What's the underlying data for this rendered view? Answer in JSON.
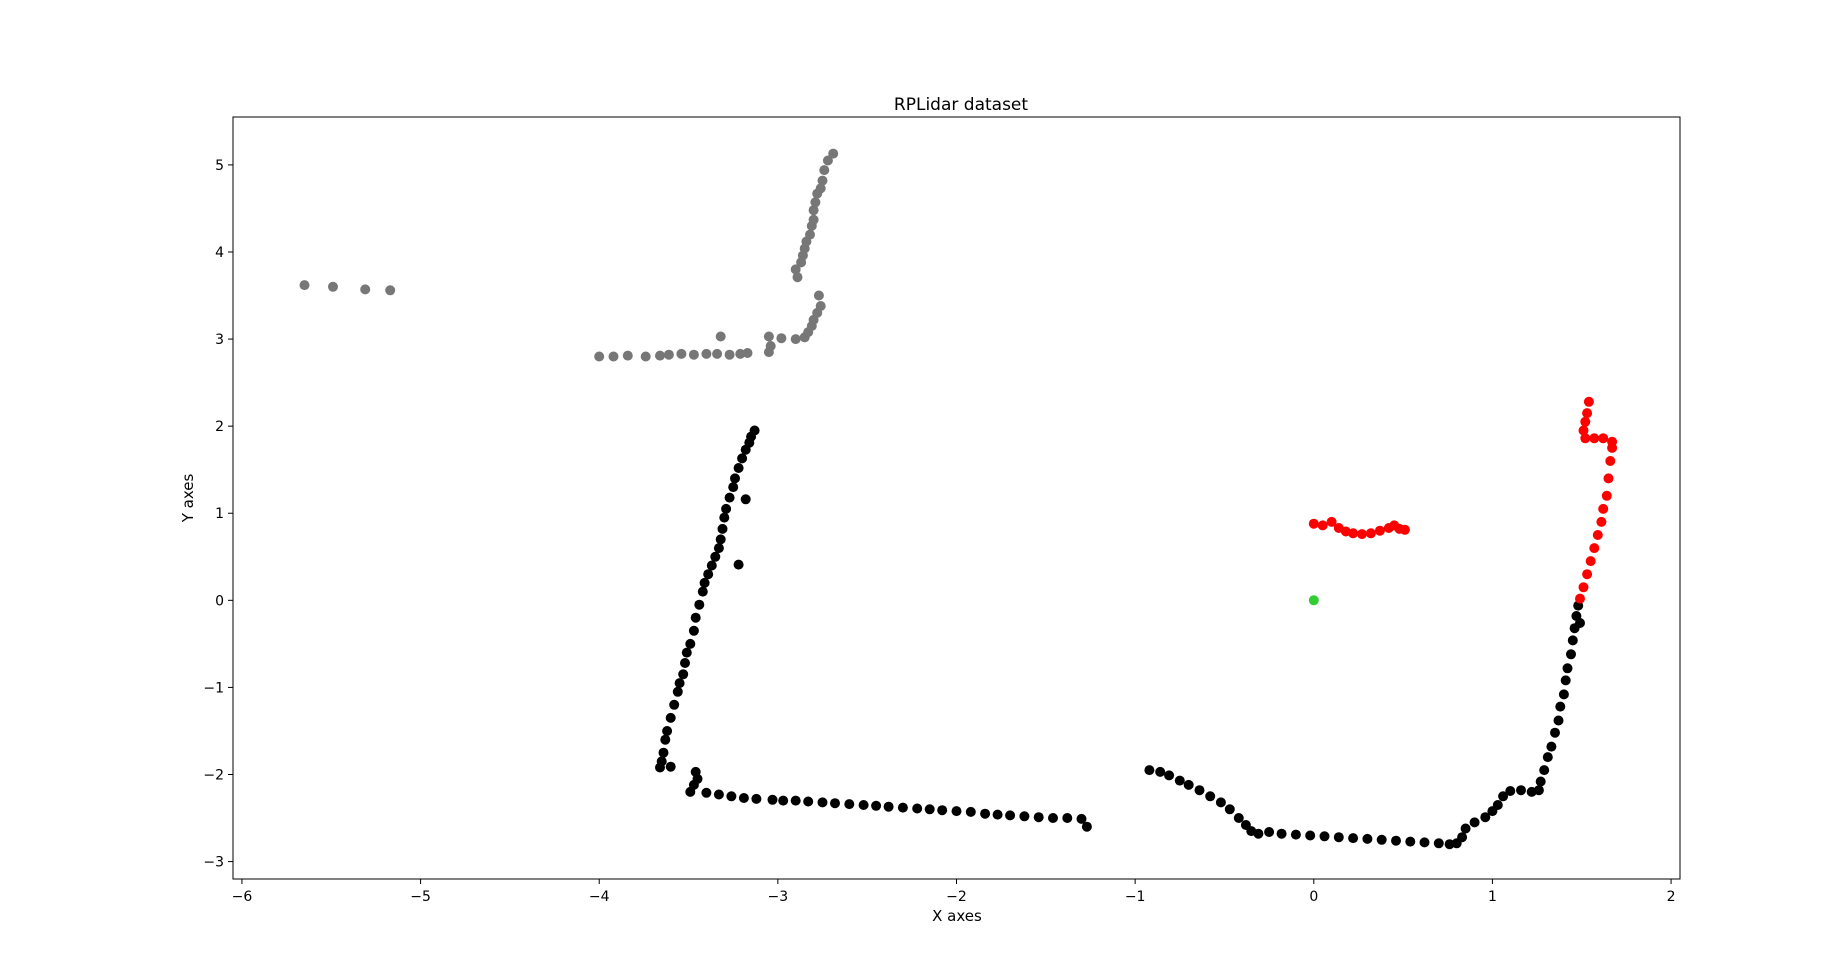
{
  "chart_data": {
    "type": "scatter",
    "title": "RPLidar dataset",
    "xlabel": "X axes",
    "ylabel": "Y axes",
    "xlim": [
      -6.05,
      2.05
    ],
    "ylim": [
      -3.2,
      5.55
    ],
    "xticks": [
      -6,
      -5,
      -4,
      -3,
      -2,
      -1,
      0,
      1,
      2
    ],
    "xtick_labels": [
      "−6",
      "−5",
      "−4",
      "−3",
      "−2",
      "−1",
      "0",
      "1",
      "2"
    ],
    "yticks": [
      -3,
      -2,
      -1,
      0,
      1,
      2,
      3,
      4,
      5
    ],
    "ytick_labels": [
      "−3",
      "−2",
      "−1",
      "0",
      "1",
      "2",
      "3",
      "4",
      "5"
    ],
    "grid": false,
    "series": [
      {
        "color": "#777777",
        "points": [
          [
            -5.65,
            3.62
          ],
          [
            -5.49,
            3.6
          ],
          [
            -5.31,
            3.57
          ],
          [
            -5.17,
            3.56
          ],
          [
            -4.0,
            2.8
          ],
          [
            -3.92,
            2.8
          ],
          [
            -3.84,
            2.81
          ],
          [
            -3.74,
            2.8
          ],
          [
            -3.66,
            2.81
          ],
          [
            -3.61,
            2.82
          ],
          [
            -3.54,
            2.83
          ],
          [
            -3.47,
            2.82
          ],
          [
            -3.4,
            2.83
          ],
          [
            -3.34,
            2.83
          ],
          [
            -3.27,
            2.82
          ],
          [
            -3.21,
            2.83
          ],
          [
            -3.17,
            2.84
          ],
          [
            -3.32,
            3.03
          ],
          [
            -3.05,
            2.85
          ],
          [
            -3.04,
            2.92
          ],
          [
            -3.05,
            3.03
          ],
          [
            -2.98,
            3.01
          ],
          [
            -2.9,
            3.0
          ],
          [
            -2.85,
            3.02
          ],
          [
            -2.83,
            3.08
          ],
          [
            -2.81,
            3.15
          ],
          [
            -2.8,
            3.22
          ],
          [
            -2.78,
            3.3
          ],
          [
            -2.76,
            3.38
          ],
          [
            -2.77,
            3.5
          ],
          [
            -2.89,
            3.71
          ],
          [
            -2.9,
            3.8
          ],
          [
            -2.87,
            3.88
          ],
          [
            -2.86,
            3.96
          ],
          [
            -2.85,
            4.04
          ],
          [
            -2.84,
            4.12
          ],
          [
            -2.82,
            4.2
          ],
          [
            -2.81,
            4.3
          ],
          [
            -2.8,
            4.37
          ],
          [
            -2.8,
            4.48
          ],
          [
            -2.79,
            4.57
          ],
          [
            -2.78,
            4.67
          ],
          [
            -2.76,
            4.73
          ],
          [
            -2.75,
            4.82
          ],
          [
            -2.74,
            4.94
          ],
          [
            -2.72,
            5.05
          ],
          [
            -2.69,
            5.13
          ]
        ]
      },
      {
        "color": "#000000",
        "points": [
          [
            -3.13,
            1.95
          ],
          [
            -3.15,
            1.88
          ],
          [
            -3.16,
            1.81
          ],
          [
            -3.18,
            1.73
          ],
          [
            -3.2,
            1.63
          ],
          [
            -3.22,
            1.52
          ],
          [
            -3.24,
            1.4
          ],
          [
            -3.25,
            1.3
          ],
          [
            -3.27,
            1.18
          ],
          [
            -3.29,
            1.05
          ],
          [
            -3.3,
            0.95
          ],
          [
            -3.31,
            0.82
          ],
          [
            -3.32,
            0.7
          ],
          [
            -3.33,
            0.6
          ],
          [
            -3.35,
            0.5
          ],
          [
            -3.37,
            0.4
          ],
          [
            -3.39,
            0.3
          ],
          [
            -3.41,
            0.2
          ],
          [
            -3.42,
            0.1
          ],
          [
            -3.44,
            -0.05
          ],
          [
            -3.46,
            -0.2
          ],
          [
            -3.47,
            -0.35
          ],
          [
            -3.49,
            -0.5
          ],
          [
            -3.51,
            -0.6
          ],
          [
            -3.52,
            -0.72
          ],
          [
            -3.53,
            -0.85
          ],
          [
            -3.55,
            -0.95
          ],
          [
            -3.56,
            -1.05
          ],
          [
            -3.58,
            -1.2
          ],
          [
            -3.6,
            -1.35
          ],
          [
            -3.62,
            -1.5
          ],
          [
            -3.63,
            -1.6
          ],
          [
            -3.64,
            -1.75
          ],
          [
            -3.65,
            -1.85
          ],
          [
            -3.66,
            -1.92
          ],
          [
            -3.6,
            -1.91
          ],
          [
            -3.18,
            1.16
          ],
          [
            -3.22,
            0.41
          ],
          [
            -3.46,
            -1.97
          ],
          [
            -3.45,
            -2.05
          ],
          [
            -3.47,
            -2.12
          ],
          [
            -3.49,
            -2.2
          ],
          [
            -3.4,
            -2.21
          ],
          [
            -3.33,
            -2.23
          ],
          [
            -3.26,
            -2.25
          ],
          [
            -3.19,
            -2.27
          ],
          [
            -3.12,
            -2.28
          ],
          [
            -3.03,
            -2.29
          ],
          [
            -2.97,
            -2.3
          ],
          [
            -2.9,
            -2.3
          ],
          [
            -2.83,
            -2.31
          ],
          [
            -2.75,
            -2.32
          ],
          [
            -2.68,
            -2.33
          ],
          [
            -2.6,
            -2.34
          ],
          [
            -2.52,
            -2.35
          ],
          [
            -2.45,
            -2.36
          ],
          [
            -2.38,
            -2.37
          ],
          [
            -2.3,
            -2.38
          ],
          [
            -2.22,
            -2.39
          ],
          [
            -2.15,
            -2.4
          ],
          [
            -2.08,
            -2.41
          ],
          [
            -2.0,
            -2.42
          ],
          [
            -1.92,
            -2.43
          ],
          [
            -1.84,
            -2.45
          ],
          [
            -1.77,
            -2.46
          ],
          [
            -1.7,
            -2.47
          ],
          [
            -1.62,
            -2.48
          ],
          [
            -1.54,
            -2.49
          ],
          [
            -1.46,
            -2.5
          ],
          [
            -1.38,
            -2.5
          ],
          [
            -1.3,
            -2.51
          ],
          [
            -1.27,
            -2.6
          ],
          [
            -0.92,
            -1.95
          ],
          [
            -0.86,
            -1.97
          ],
          [
            -0.81,
            -2.01
          ],
          [
            -0.75,
            -2.07
          ],
          [
            -0.7,
            -2.12
          ],
          [
            -0.64,
            -2.18
          ],
          [
            -0.58,
            -2.25
          ],
          [
            -0.52,
            -2.32
          ],
          [
            -0.47,
            -2.4
          ],
          [
            -0.42,
            -2.5
          ],
          [
            -0.38,
            -2.58
          ],
          [
            -0.35,
            -2.65
          ],
          [
            -0.31,
            -2.68
          ],
          [
            -0.25,
            -2.66
          ],
          [
            -0.18,
            -2.68
          ],
          [
            -0.1,
            -2.69
          ],
          [
            -0.02,
            -2.7
          ],
          [
            0.06,
            -2.71
          ],
          [
            0.14,
            -2.72
          ],
          [
            0.22,
            -2.73
          ],
          [
            0.3,
            -2.74
          ],
          [
            0.38,
            -2.75
          ],
          [
            0.46,
            -2.76
          ],
          [
            0.54,
            -2.77
          ],
          [
            0.62,
            -2.78
          ],
          [
            0.7,
            -2.79
          ],
          [
            0.76,
            -2.8
          ],
          [
            0.8,
            -2.79
          ],
          [
            0.83,
            -2.72
          ],
          [
            0.85,
            -2.62
          ],
          [
            0.9,
            -2.55
          ],
          [
            0.96,
            -2.49
          ],
          [
            1.0,
            -2.42
          ],
          [
            1.03,
            -2.35
          ],
          [
            1.06,
            -2.25
          ],
          [
            1.1,
            -2.19
          ],
          [
            1.16,
            -2.18
          ],
          [
            1.22,
            -2.2
          ],
          [
            1.26,
            -2.18
          ],
          [
            1.27,
            -2.08
          ],
          [
            1.29,
            -1.95
          ],
          [
            1.31,
            -1.8
          ],
          [
            1.33,
            -1.68
          ],
          [
            1.35,
            -1.52
          ],
          [
            1.37,
            -1.38
          ],
          [
            1.38,
            -1.22
          ],
          [
            1.4,
            -1.08
          ],
          [
            1.41,
            -0.92
          ],
          [
            1.42,
            -0.78
          ],
          [
            1.44,
            -0.62
          ],
          [
            1.45,
            -0.46
          ],
          [
            1.46,
            -0.32
          ],
          [
            1.47,
            -0.18
          ],
          [
            1.48,
            -0.06
          ],
          [
            1.49,
            -0.26
          ]
        ]
      },
      {
        "color": "#ff0000",
        "points": [
          [
            0.0,
            0.88
          ],
          [
            0.05,
            0.86
          ],
          [
            0.1,
            0.9
          ],
          [
            0.14,
            0.83
          ],
          [
            0.18,
            0.79
          ],
          [
            0.22,
            0.77
          ],
          [
            0.27,
            0.76
          ],
          [
            0.32,
            0.77
          ],
          [
            0.37,
            0.8
          ],
          [
            0.42,
            0.83
          ],
          [
            0.45,
            0.86
          ],
          [
            0.48,
            0.82
          ],
          [
            0.51,
            0.81
          ],
          [
            1.49,
            0.02
          ],
          [
            1.51,
            0.15
          ],
          [
            1.53,
            0.3
          ],
          [
            1.55,
            0.45
          ],
          [
            1.57,
            0.6
          ],
          [
            1.59,
            0.75
          ],
          [
            1.61,
            0.9
          ],
          [
            1.62,
            1.05
          ],
          [
            1.64,
            1.2
          ],
          [
            1.65,
            1.4
          ],
          [
            1.66,
            1.6
          ],
          [
            1.67,
            1.75
          ],
          [
            1.67,
            1.82
          ],
          [
            1.62,
            1.86
          ],
          [
            1.57,
            1.86
          ],
          [
            1.52,
            1.86
          ],
          [
            1.51,
            1.95
          ],
          [
            1.52,
            2.05
          ],
          [
            1.53,
            2.15
          ],
          [
            1.54,
            2.28
          ]
        ]
      },
      {
        "color": "#33cc33",
        "points": [
          [
            0.0,
            0.0
          ]
        ]
      }
    ]
  }
}
